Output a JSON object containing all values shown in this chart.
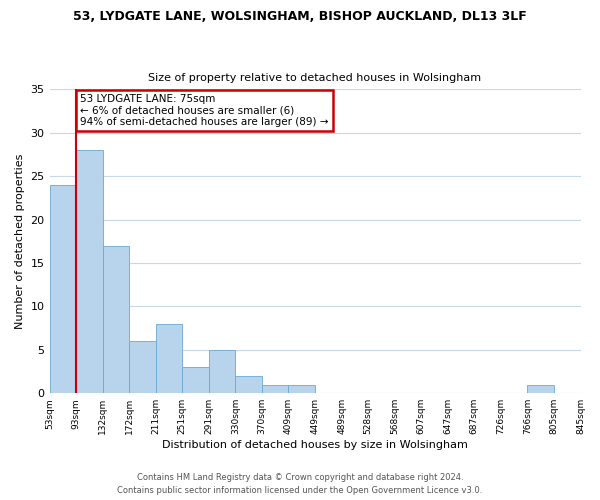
{
  "title1": "53, LYDGATE LANE, WOLSINGHAM, BISHOP AUCKLAND, DL13 3LF",
  "title2": "Size of property relative to detached houses in Wolsingham",
  "xlabel": "Distribution of detached houses by size in Wolsingham",
  "ylabel": "Number of detached properties",
  "bar_values": [
    24,
    28,
    17,
    6,
    8,
    3,
    5,
    2,
    1,
    1,
    0,
    0,
    0,
    0,
    0,
    0,
    0,
    0,
    1,
    0
  ],
  "bin_labels": [
    "53sqm",
    "93sqm",
    "132sqm",
    "172sqm",
    "211sqm",
    "251sqm",
    "291sqm",
    "330sqm",
    "370sqm",
    "409sqm",
    "449sqm",
    "489sqm",
    "528sqm",
    "568sqm",
    "607sqm",
    "647sqm",
    "687sqm",
    "726sqm",
    "766sqm",
    "805sqm",
    "845sqm"
  ],
  "bar_color": "#b8d4ec",
  "bar_edge_color": "#6aaad4",
  "ylim": [
    0,
    35
  ],
  "yticks": [
    0,
    5,
    10,
    15,
    20,
    25,
    30,
    35
  ],
  "annotation_title": "53 LYDGATE LANE: 75sqm",
  "annotation_line1": "← 6% of detached houses are smaller (6)",
  "annotation_line2": "94% of semi-detached houses are larger (89) →",
  "annotation_box_color": "#ffffff",
  "annotation_border_color": "#cc0000",
  "vline_color": "#cc0000",
  "footer1": "Contains HM Land Registry data © Crown copyright and database right 2024.",
  "footer2": "Contains public sector information licensed under the Open Government Licence v3.0.",
  "background_color": "#ffffff",
  "grid_color": "#c8d8e8"
}
